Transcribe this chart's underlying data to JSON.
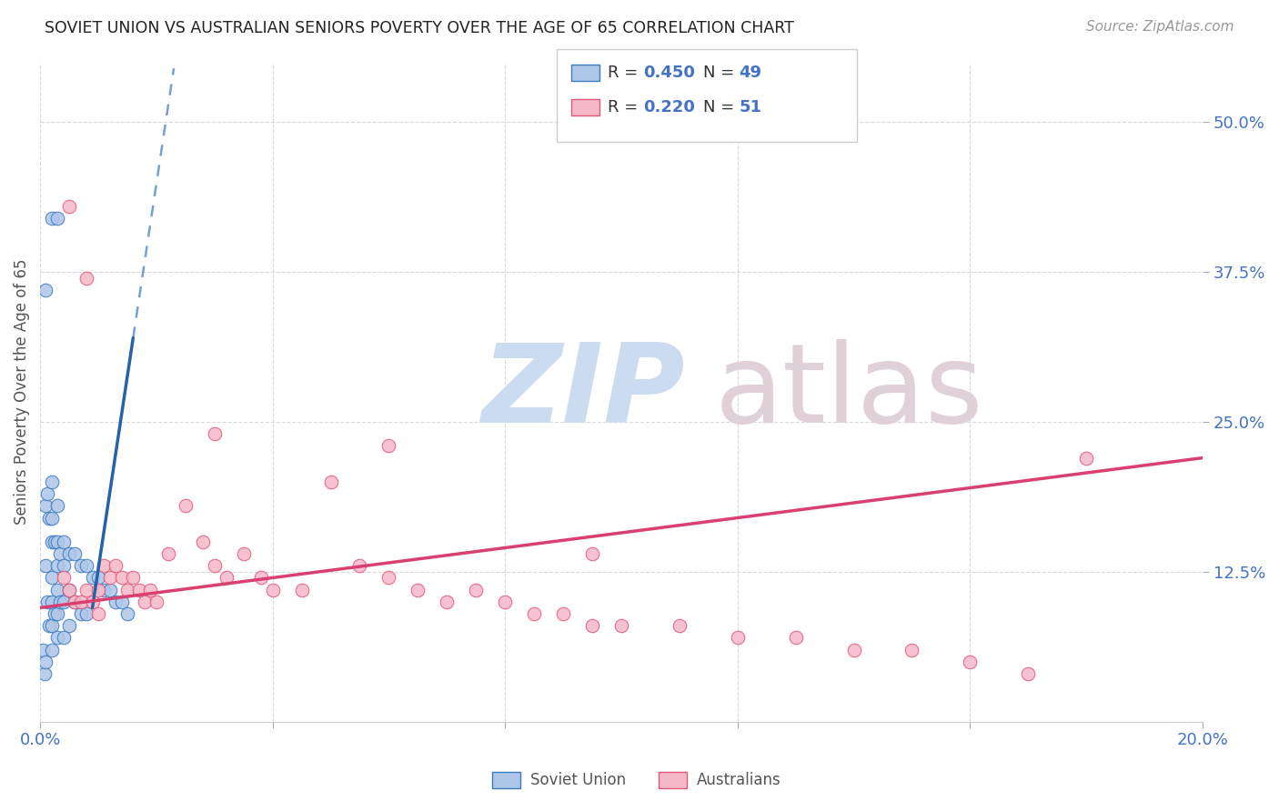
{
  "title": "SOVIET UNION VS AUSTRALIAN SENIORS POVERTY OVER THE AGE OF 65 CORRELATION CHART",
  "source": "Source: ZipAtlas.com",
  "ylabel": "Seniors Poverty Over the Age of 65",
  "xlim": [
    0.0,
    0.2
  ],
  "ylim": [
    0.0,
    0.55
  ],
  "xtick_positions": [
    0.0,
    0.04,
    0.08,
    0.12,
    0.16,
    0.2
  ],
  "xticklabels": [
    "0.0%",
    "",
    "",
    "",
    "",
    "20.0%"
  ],
  "ytick_positions": [
    0.125,
    0.25,
    0.375,
    0.5
  ],
  "ytick_labels": [
    "12.5%",
    "25.0%",
    "37.5%",
    "50.0%"
  ],
  "soviet_R": 0.45,
  "soviet_N": 49,
  "australian_R": 0.22,
  "australian_N": 51,
  "soviet_color": "#aec6e8",
  "soviet_edge_color": "#3a7abf",
  "soviet_line_color": "#2563a8",
  "australian_color": "#f5b8c8",
  "australian_edge_color": "#e05878",
  "australian_line_color": "#d94070",
  "background_color": "#ffffff",
  "soviet_x": [
    0.0005,
    0.0008,
    0.001,
    0.001,
    0.001,
    0.0012,
    0.0012,
    0.0015,
    0.0015,
    0.002,
    0.002,
    0.002,
    0.002,
    0.002,
    0.002,
    0.002,
    0.0025,
    0.0025,
    0.003,
    0.003,
    0.003,
    0.003,
    0.003,
    0.003,
    0.0035,
    0.0035,
    0.004,
    0.004,
    0.004,
    0.004,
    0.005,
    0.005,
    0.005,
    0.006,
    0.006,
    0.007,
    0.007,
    0.008,
    0.008,
    0.009,
    0.01,
    0.011,
    0.012,
    0.013,
    0.014,
    0.015,
    0.002,
    0.003,
    0.001
  ],
  "soviet_y": [
    0.06,
    0.04,
    0.18,
    0.13,
    0.05,
    0.19,
    0.1,
    0.17,
    0.08,
    0.2,
    0.17,
    0.15,
    0.12,
    0.1,
    0.08,
    0.06,
    0.15,
    0.09,
    0.18,
    0.15,
    0.13,
    0.11,
    0.09,
    0.07,
    0.14,
    0.1,
    0.15,
    0.13,
    0.1,
    0.07,
    0.14,
    0.11,
    0.08,
    0.14,
    0.1,
    0.13,
    0.09,
    0.13,
    0.09,
    0.12,
    0.12,
    0.11,
    0.11,
    0.1,
    0.1,
    0.09,
    0.42,
    0.42,
    0.36
  ],
  "australian_x": [
    0.004,
    0.005,
    0.006,
    0.007,
    0.008,
    0.009,
    0.01,
    0.01,
    0.011,
    0.012,
    0.013,
    0.014,
    0.015,
    0.016,
    0.017,
    0.018,
    0.019,
    0.02,
    0.022,
    0.025,
    0.028,
    0.03,
    0.032,
    0.035,
    0.038,
    0.04,
    0.045,
    0.05,
    0.055,
    0.06,
    0.065,
    0.07,
    0.075,
    0.08,
    0.085,
    0.09,
    0.095,
    0.1,
    0.11,
    0.12,
    0.13,
    0.14,
    0.15,
    0.16,
    0.17,
    0.18,
    0.005,
    0.008,
    0.03,
    0.06,
    0.095
  ],
  "australian_y": [
    0.12,
    0.11,
    0.1,
    0.1,
    0.11,
    0.1,
    0.11,
    0.09,
    0.13,
    0.12,
    0.13,
    0.12,
    0.11,
    0.12,
    0.11,
    0.1,
    0.11,
    0.1,
    0.14,
    0.18,
    0.15,
    0.13,
    0.12,
    0.14,
    0.12,
    0.11,
    0.11,
    0.2,
    0.13,
    0.12,
    0.11,
    0.1,
    0.11,
    0.1,
    0.09,
    0.09,
    0.08,
    0.08,
    0.08,
    0.07,
    0.07,
    0.06,
    0.06,
    0.05,
    0.04,
    0.22,
    0.43,
    0.37,
    0.24,
    0.23,
    0.14
  ],
  "watermark_zip_color": "#ccdcf0",
  "watermark_atlas_color": "#e0d0d8"
}
